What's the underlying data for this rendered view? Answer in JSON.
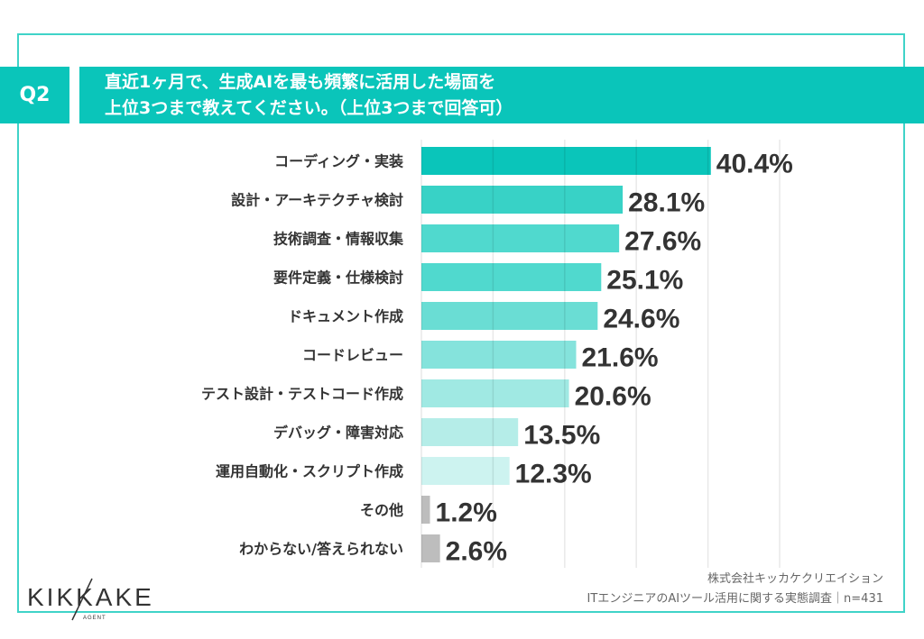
{
  "header": {
    "question_number": "Q2",
    "title_line1": "直近1ヶ月で、生成AIを最も頻繁に活用した場面を",
    "title_line2": "上位3つまで教えてください。（上位3つまで回答可）"
  },
  "chart_data": {
    "type": "bar",
    "orientation": "horizontal",
    "categories": [
      "コーディング・実装",
      "設計・アーキテクチャ検討",
      "技術調査・情報収集",
      "要件定義・仕様検討",
      "ドキュメント作成",
      "コードレビュー",
      "テスト設計・テストコード作成",
      "デバッグ・障害対応",
      "運用自動化・スクリプト作成",
      "その他",
      "わからない/答えられない"
    ],
    "values": [
      40.4,
      28.1,
      27.6,
      25.1,
      24.6,
      21.6,
      20.6,
      13.5,
      12.3,
      1.2,
      2.6
    ],
    "data_labels": [
      "40.4%",
      "28.1%",
      "27.6%",
      "25.1%",
      "24.6%",
      "21.6%",
      "20.6%",
      "13.5%",
      "12.3%",
      "1.2%",
      "2.6%"
    ],
    "colors": [
      "#0ac5ba",
      "#38d2c6",
      "#50d9ce",
      "#50d9ce",
      "#6addd4",
      "#85e3dc",
      "#a0e9e3",
      "#b5ede8",
      "#cdf3f0",
      "#bdbdbd",
      "#bdbdbd"
    ],
    "unit": "%",
    "xlim": [
      0,
      50
    ],
    "grid": true
  },
  "footer": {
    "logo": "KIKKAKE AGENT",
    "company": "株式会社キッカケクリエイション",
    "survey": "ITエンジニアのAIツール活用に関する実態調査｜n=431"
  }
}
